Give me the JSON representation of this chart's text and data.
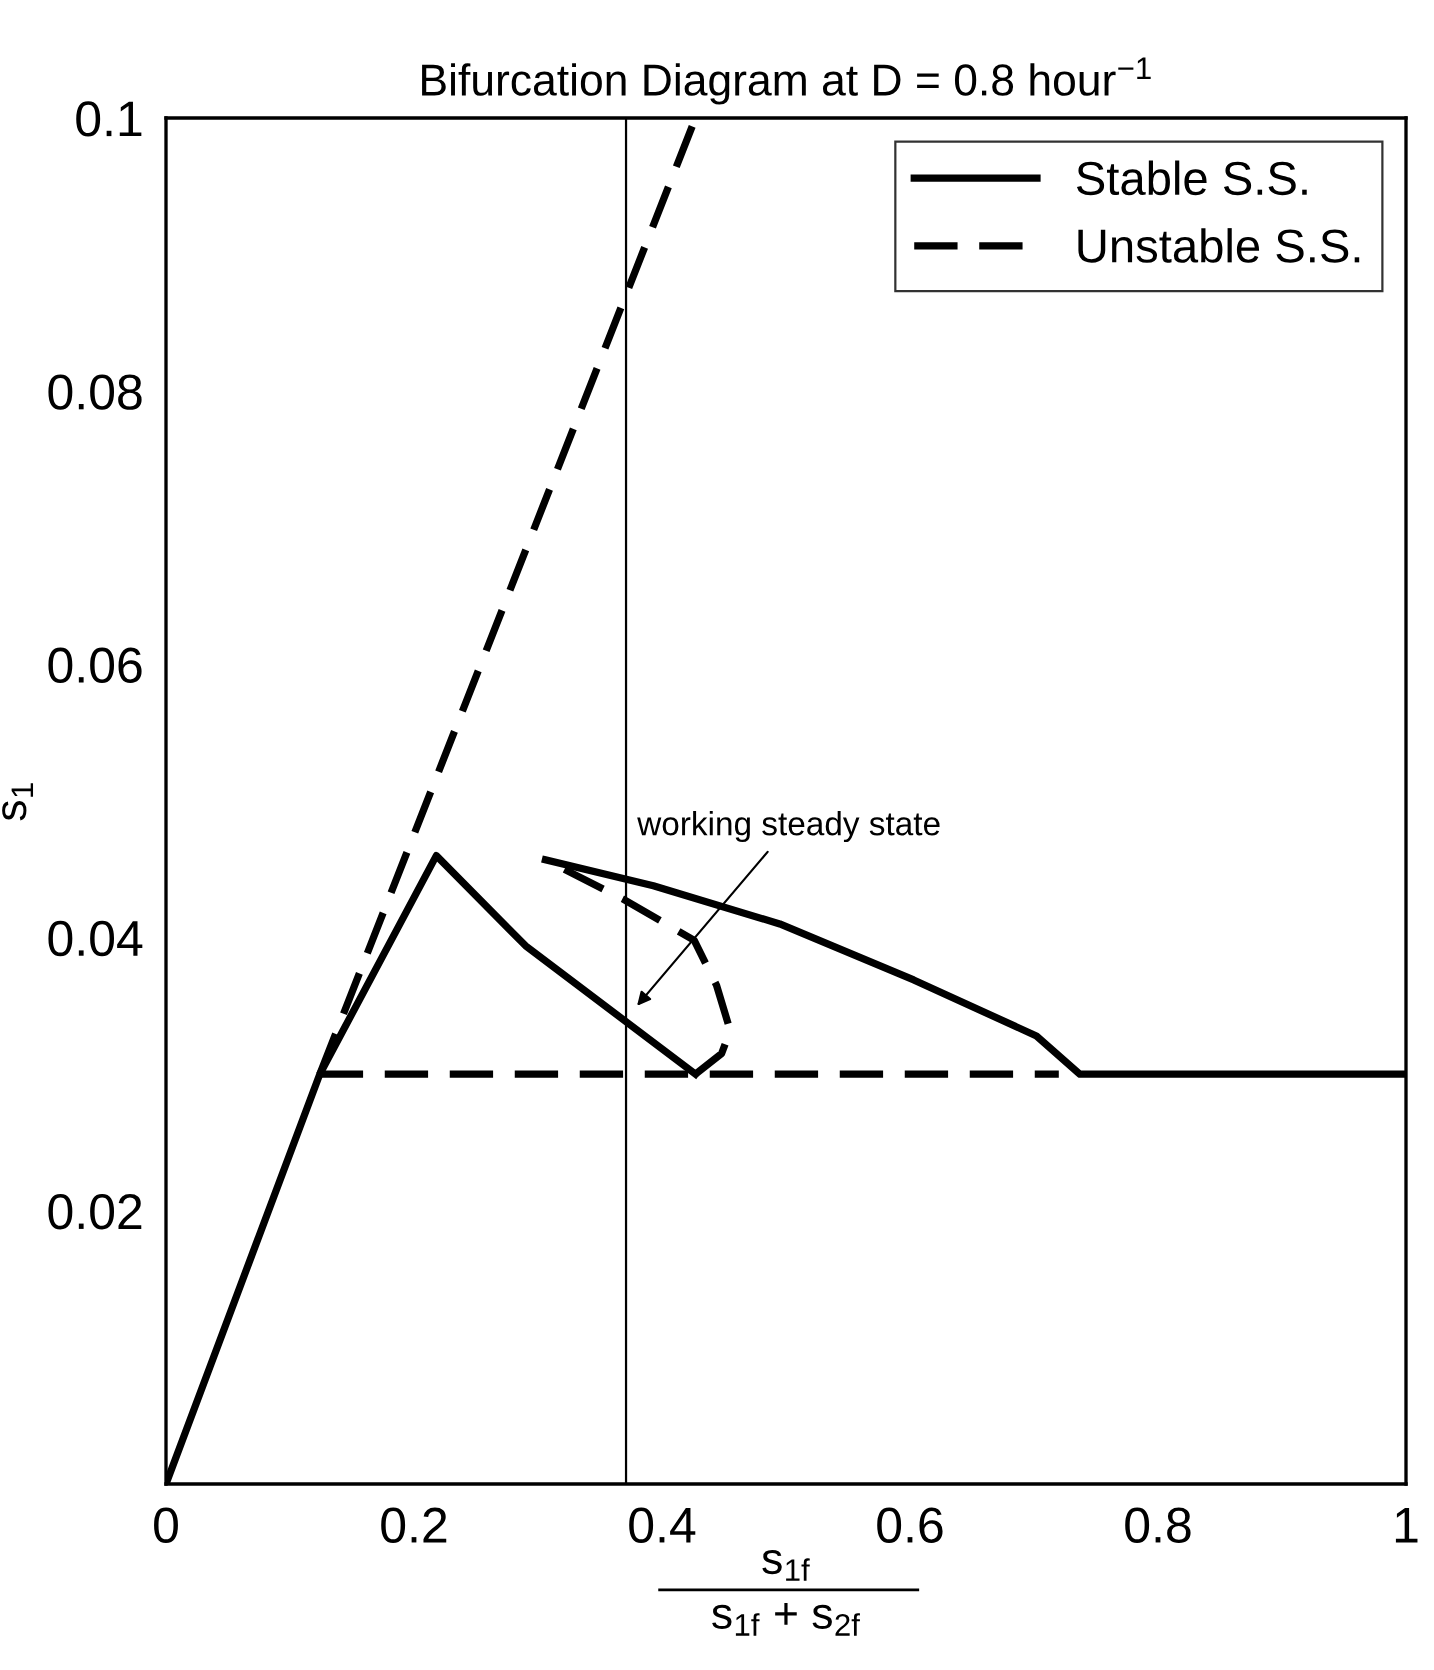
{
  "chart_data": {
    "type": "line",
    "title": "Bifurcation Diagram at D = 0.8 hour$^{−1}$",
    "xlabel": "s$_{1f}$\ns$_{1f}$ + s$_{2f}$",
    "ylabel": "s$_{1}$",
    "xlim": [
      0,
      1
    ],
    "ylim": [
      0,
      0.1
    ],
    "xticks": [
      0,
      0.2,
      0.4,
      0.6,
      0.8,
      1
    ],
    "yticks": [
      0.02,
      0.04,
      0.06,
      0.08,
      0.1
    ],
    "grid": false,
    "legend": "top right",
    "marker": "none",
    "series": [
      {
        "name": "Stable S.S.",
        "color": "#000000",
        "line_style": "solid",
        "x": [
          0,
          0.124,
          0.218,
          0.29,
          0.427,
          null,
          0.306,
          0.393,
          0.495,
          0.603,
          0.702,
          0.737,
          1
        ],
        "values": [
          0,
          0.03,
          0.046,
          0.0394,
          0.03,
          null,
          0.0457,
          0.0438,
          0.041,
          0.0369,
          0.0328,
          0.03,
          0.03
        ]
      },
      {
        "name": "Unstable S.S.",
        "color": "#000000",
        "line_style": "dashed",
        "x": [
          0.124,
          0.427,
          null,
          0.124,
          0.72,
          null,
          0.427,
          0.448,
          0.455,
          0.444,
          0.426,
          0.369,
          0.306
        ],
        "values": [
          0.03,
          0.1,
          null,
          0.03,
          0.03,
          null,
          0.03,
          0.0315,
          0.0332,
          0.0365,
          0.0398,
          0.0428,
          0.0457
        ]
      }
    ],
    "ref_lines": [
      {
        "axis": "x",
        "value": 0.371,
        "color": "#000000",
        "line_style": "solid"
      }
    ],
    "annotations": [
      {
        "text": "working steady state",
        "x": 0.377,
        "y": 0.0347
      }
    ]
  }
}
